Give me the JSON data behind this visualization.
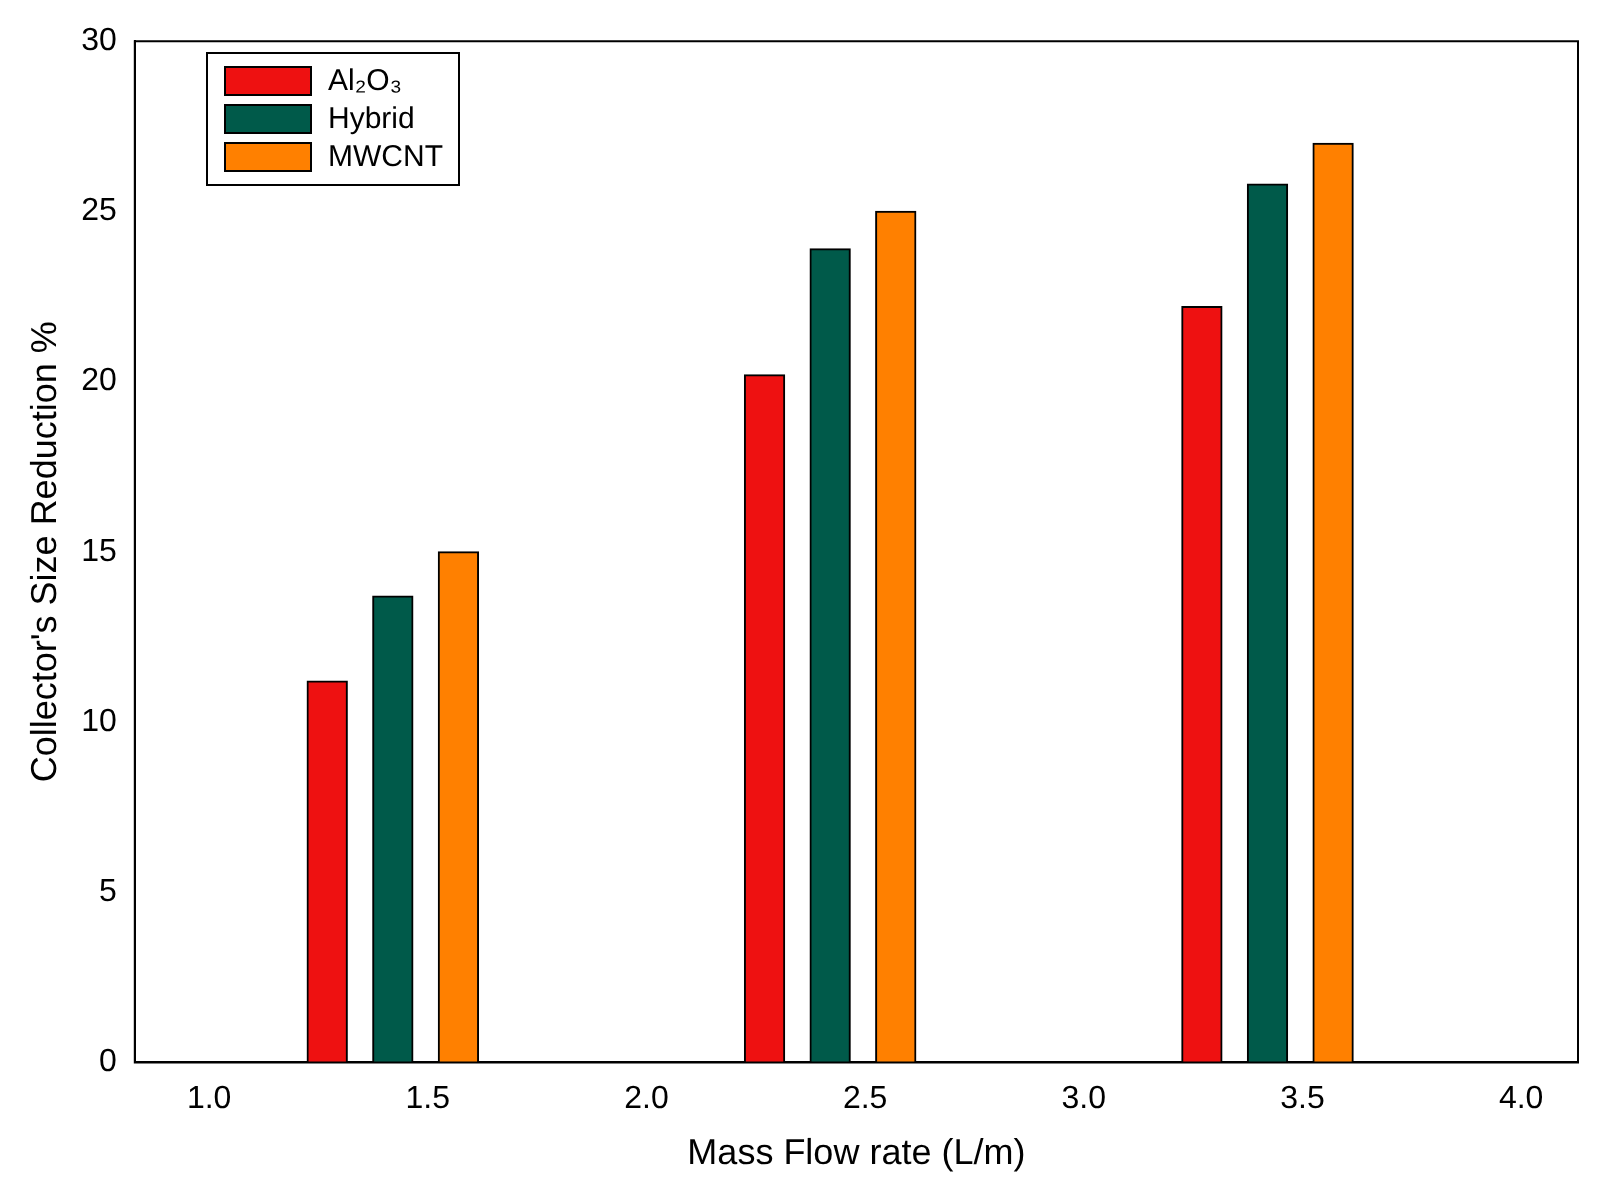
{
  "chart_data": {
    "type": "bar",
    "xlabel": "Mass Flow rate (L/m)",
    "ylabel": "Collector's Size Reduction %",
    "series": [
      {
        "name": "Al₂O₃",
        "color": "#ee1111",
        "x": [
          1.27,
          2.27,
          3.27
        ],
        "values": [
          11.2,
          20.2,
          22.2
        ]
      },
      {
        "name": "Hybrid",
        "color": "#005a4a",
        "x": [
          1.42,
          2.42,
          3.42
        ],
        "values": [
          13.7,
          23.9,
          25.8
        ]
      },
      {
        "name": "MWCNT",
        "color": "#ff8000",
        "x": [
          1.57,
          2.57,
          3.57
        ],
        "values": [
          15.0,
          25.0,
          27.0
        ]
      }
    ],
    "xlim": [
      0.83,
      4.13
    ],
    "xticks": [
      {
        "value": 1,
        "label": "1.0"
      },
      {
        "value": 1.5,
        "label": "1.5"
      },
      {
        "value": 2,
        "label": "2.0"
      },
      {
        "value": 2.5,
        "label": "2.5"
      },
      {
        "value": 3,
        "label": "3.0"
      },
      {
        "value": 3.5,
        "label": "3.5"
      },
      {
        "value": 4,
        "label": "4.0"
      }
    ],
    "ylim": [
      0,
      30
    ],
    "yticks": [
      0,
      5,
      10,
      15,
      20,
      25,
      30
    ],
    "grid": false,
    "legend": "top left"
  }
}
